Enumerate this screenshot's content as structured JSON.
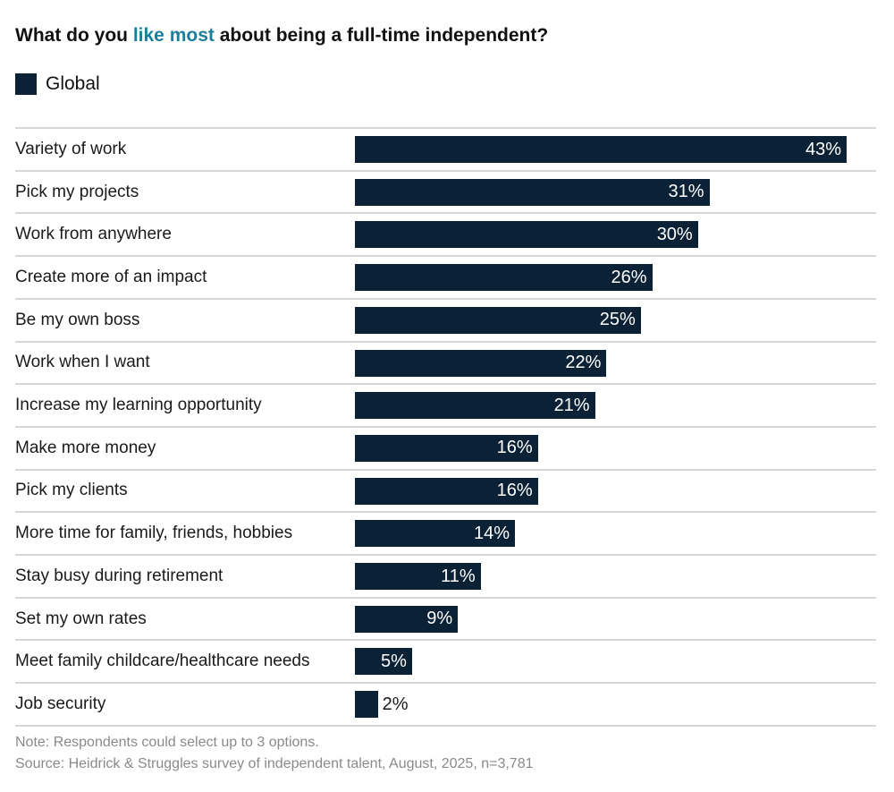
{
  "title": {
    "before": "What do you ",
    "highlight": "like most",
    "after": " about being a full-time independent?"
  },
  "colors": {
    "bar": "#0b2236",
    "highlight": "#1b7f9b"
  },
  "chart_data": {
    "type": "bar",
    "orientation": "horizontal",
    "legend": [
      "Global"
    ],
    "categories": [
      "Variety of work",
      "Pick my projects",
      "Work from anywhere",
      "Create more of an impact",
      "Be my own boss",
      "Work when I want",
      "Increase my learning opportunity",
      "Make more money",
      "Pick my clients",
      "More time for family, friends, hobbies",
      "Stay busy during retirement",
      "Set my own rates",
      "Meet family childcare/healthcare needs",
      "Job security"
    ],
    "series": [
      {
        "name": "Global",
        "values": [
          43,
          31,
          30,
          26,
          25,
          22,
          21,
          16,
          16,
          14,
          11,
          9,
          5,
          2
        ]
      }
    ],
    "labels": [
      "43%",
      "31%",
      "30%",
      "26%",
      "25%",
      "22%",
      "21%",
      "16%",
      "16%",
      "14%",
      "11%",
      "9%",
      "5%",
      "2%"
    ]
  },
  "notes": {
    "note": "Note: Respondents could select up to 3 options.",
    "source": "Source: Heidrick & Struggles survey of independent talent, August, 2025, n=3,781"
  }
}
